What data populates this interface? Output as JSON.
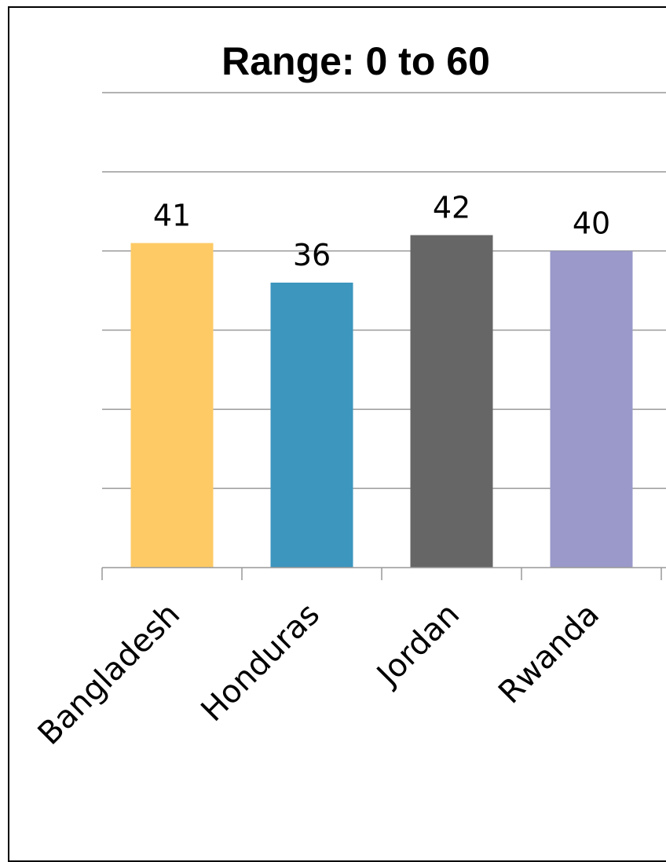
{
  "chart_data": {
    "type": "bar",
    "title": "Range: 0 to 60",
    "categories": [
      "Bangladesh",
      "Honduras",
      "Jordan",
      "Rwanda"
    ],
    "values": [
      41,
      36,
      42,
      40
    ],
    "colors": [
      "#FECA65",
      "#3C96BE",
      "#666666",
      "#9A99CA"
    ],
    "gridline_color": "#999999",
    "xlabel": "",
    "ylabel": "",
    "ylim": [
      0,
      60
    ],
    "grid": true,
    "legend": "none"
  }
}
